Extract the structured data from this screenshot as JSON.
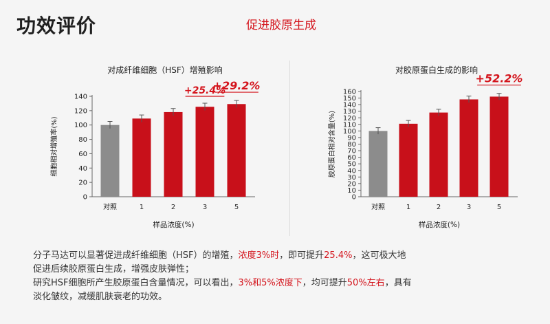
{
  "header": {
    "title": "功效评价",
    "subtitle": "促进胶原生成"
  },
  "colors": {
    "accent": "#d4141c",
    "bar_red": "#c8101a",
    "bar_control": "#8c8c8c",
    "text": "#333333"
  },
  "chart_data": [
    {
      "type": "bar",
      "title": "对成纤维细胞（HSF）增殖影响",
      "xlabel": "样品浓度(%)",
      "ylabel": "细胞相对增殖率(%)",
      "categories": [
        "对照",
        "1",
        "2",
        "3",
        "5"
      ],
      "values": [
        100,
        109,
        118,
        125.4,
        129.2
      ],
      "errors": [
        5,
        5,
        5,
        5,
        5
      ],
      "bar_colors": [
        "#8c8c8c",
        "#c8101a",
        "#c8101a",
        "#c8101a",
        "#c8101a"
      ],
      "ylim": [
        0,
        140
      ],
      "yticks": [
        0,
        20,
        40,
        60,
        80,
        100,
        120,
        140
      ],
      "annotations": [
        {
          "category": "3",
          "label": "+25.4%"
        },
        {
          "category": "5",
          "label": "+29.2%"
        }
      ],
      "grid": false
    },
    {
      "type": "bar",
      "title": "对胶原蛋白生成的影响",
      "xlabel": "样品浓度(%)",
      "ylabel": "胶原蛋白相对含量(%)",
      "categories": [
        "对照",
        "1",
        "2",
        "3",
        "5"
      ],
      "values": [
        100,
        111,
        128,
        148,
        152.2
      ],
      "errors": [
        5,
        5,
        5,
        5,
        5
      ],
      "bar_colors": [
        "#8c8c8c",
        "#c8101a",
        "#c8101a",
        "#c8101a",
        "#c8101a"
      ],
      "ylim": [
        0,
        160
      ],
      "yticks": [
        0,
        10,
        20,
        30,
        40,
        50,
        60,
        70,
        80,
        90,
        100,
        110,
        120,
        130,
        140,
        150,
        160
      ],
      "ytick_labels": [
        "0",
        "10",
        "20",
        "30",
        "40",
        "50",
        "60",
        "70",
        "80",
        "90",
        "100",
        "110",
        "120",
        "130",
        "140",
        "150",
        "160"
      ],
      "annotations": [
        {
          "category": "5",
          "label": "+52.2%"
        }
      ],
      "grid": false
    }
  ],
  "description": {
    "line1": [
      {
        "text": "分子马达可以显著促进成纤维细胞（HSF）的增殖，",
        "hl": false
      },
      {
        "text": "浓度3%时",
        "hl": true
      },
      {
        "text": "，即可提升",
        "hl": false
      },
      {
        "text": "25.4%",
        "hl": true
      },
      {
        "text": "，这可极大地",
        "hl": false
      }
    ],
    "line2": [
      {
        "text": "促进后续胶原蛋白生成，增强皮肤弹性；",
        "hl": false
      }
    ],
    "line3": [
      {
        "text": "研究HSF细胞所产生胶原蛋白含量情况，可以看出，",
        "hl": false
      },
      {
        "text": "3%和5%浓度下",
        "hl": true
      },
      {
        "text": "，均可提升",
        "hl": false
      },
      {
        "text": "50%左右",
        "hl": true
      },
      {
        "text": "，具有",
        "hl": false
      }
    ],
    "line4": [
      {
        "text": "淡化皱纹，减缓肌肤衰老的功效。",
        "hl": false
      }
    ]
  }
}
